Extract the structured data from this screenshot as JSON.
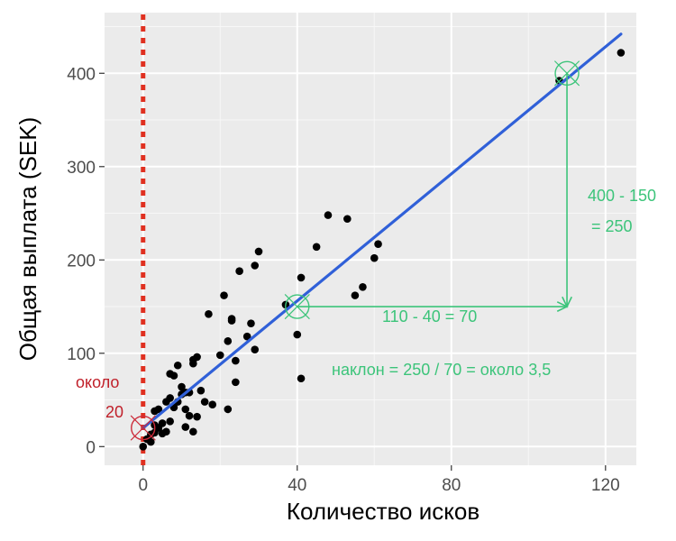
{
  "chart_data": {
    "type": "scatter",
    "xlabel": "Количество исков",
    "ylabel": "Общая выплата (SEK)",
    "xlim": [
      -10,
      128
    ],
    "ylim": [
      -20,
      465
    ],
    "xticks": [
      0,
      40,
      80,
      120
    ],
    "yticks": [
      0,
      100,
      200,
      300,
      400
    ],
    "xticks_minor": [
      20,
      60,
      100
    ],
    "yticks_minor": [
      50,
      150,
      250,
      350,
      450
    ],
    "grid": true,
    "points": [
      [
        0,
        0
      ],
      [
        1,
        8
      ],
      [
        2,
        5
      ],
      [
        2,
        13
      ],
      [
        3,
        15
      ],
      [
        3,
        23
      ],
      [
        3,
        38
      ],
      [
        4,
        20
      ],
      [
        4,
        40
      ],
      [
        5,
        14
      ],
      [
        5,
        25
      ],
      [
        6,
        16
      ],
      [
        6,
        48
      ],
      [
        7,
        27
      ],
      [
        7,
        52
      ],
      [
        7,
        78
      ],
      [
        8,
        76
      ],
      [
        8,
        42
      ],
      [
        9,
        48
      ],
      [
        9,
        87
      ],
      [
        10,
        56
      ],
      [
        10,
        64
      ],
      [
        11,
        21
      ],
      [
        11,
        40
      ],
      [
        11,
        58
      ],
      [
        12,
        33
      ],
      [
        12,
        58
      ],
      [
        13,
        89
      ],
      [
        13,
        16
      ],
      [
        13,
        93
      ],
      [
        14,
        96
      ],
      [
        14,
        32
      ],
      [
        15,
        60
      ],
      [
        16,
        48
      ],
      [
        17,
        142
      ],
      [
        18,
        45
      ],
      [
        20,
        98
      ],
      [
        21,
        162
      ],
      [
        22,
        113
      ],
      [
        22,
        40
      ],
      [
        23,
        135
      ],
      [
        23,
        137
      ],
      [
        24,
        69
      ],
      [
        24,
        92
      ],
      [
        25,
        188
      ],
      [
        27,
        118
      ],
      [
        28,
        132
      ],
      [
        29,
        104
      ],
      [
        29,
        194
      ],
      [
        30,
        209
      ],
      [
        37,
        152
      ],
      [
        40,
        120
      ],
      [
        41,
        181
      ],
      [
        41,
        73
      ],
      [
        45,
        214
      ],
      [
        48,
        248
      ],
      [
        53,
        244
      ],
      [
        55,
        162
      ],
      [
        57,
        171
      ],
      [
        60,
        202
      ],
      [
        61,
        217
      ],
      [
        108,
        392
      ],
      [
        124,
        422
      ]
    ],
    "fit_line": {
      "x": [
        0,
        124
      ],
      "y": [
        20,
        442
      ],
      "color": "#3060d8"
    },
    "vline": {
      "x": 0,
      "color": "#e03020"
    },
    "markers": [
      {
        "x": 0,
        "y": 20,
        "color": "#cc2b3a"
      },
      {
        "x": 40,
        "y": 150,
        "color": "#3cc47a"
      },
      {
        "x": 110,
        "y": 400,
        "color": "#3cc47a"
      }
    ],
    "arrows": [
      {
        "from": [
          40,
          150
        ],
        "to": [
          110,
          150
        ],
        "color": "#3cc47a"
      },
      {
        "from": [
          110,
          400
        ],
        "to": [
          110,
          150
        ],
        "color": "#3cc47a"
      }
    ],
    "annotations": {
      "intercept_line1": "около",
      "intercept_line2": "20",
      "rise_line1": "400 - 150",
      "rise_line2": "= 250",
      "run": "110 - 40 = 70",
      "slope": "наклон = 250 / 70 = около 3,5"
    },
    "colors": {
      "panel": "#ebebeb",
      "grid_major": "#ffffff",
      "point": "#000000",
      "red_text": "#c0202a",
      "green": "#3cc47a"
    }
  }
}
